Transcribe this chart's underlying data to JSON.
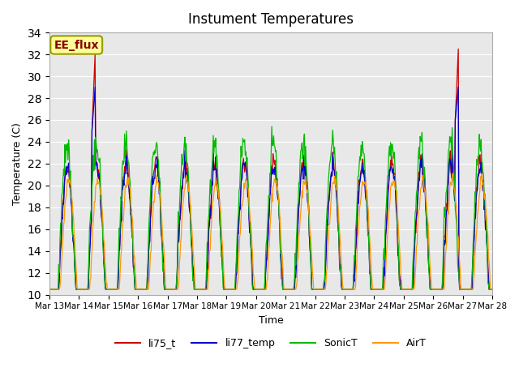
{
  "title": "Instument Temperatures",
  "xlabel": "Time",
  "ylabel": "Temperature (C)",
  "ylim": [
    10,
    34
  ],
  "bg_color": "#e8e8e8",
  "annotation_text": "EE_flux",
  "annotation_bg": "#ffff99",
  "annotation_border": "#999900",
  "x_tick_labels": [
    "Mar 13",
    "Mar 14",
    "Mar 15",
    "Mar 16",
    "Mar 17",
    "Mar 18",
    "Mar 19",
    "Mar 20",
    "Mar 21",
    "Mar 22",
    "Mar 23",
    "Mar 24",
    "Mar 25",
    "Mar 26",
    "Mar 27",
    "Mar 28"
  ],
  "series": {
    "li75_t": {
      "color": "#cc0000"
    },
    "li77_temp": {
      "color": "#0000cc"
    },
    "SonicT": {
      "color": "#00bb00"
    },
    "AirT": {
      "color": "#ff9900"
    }
  },
  "legend_line_colors": [
    "#cc0000",
    "#0000cc",
    "#00bb00",
    "#ff9900"
  ],
  "legend_labels": [
    "li75_t",
    "li77_temp",
    "SonicT",
    "AirT"
  ]
}
